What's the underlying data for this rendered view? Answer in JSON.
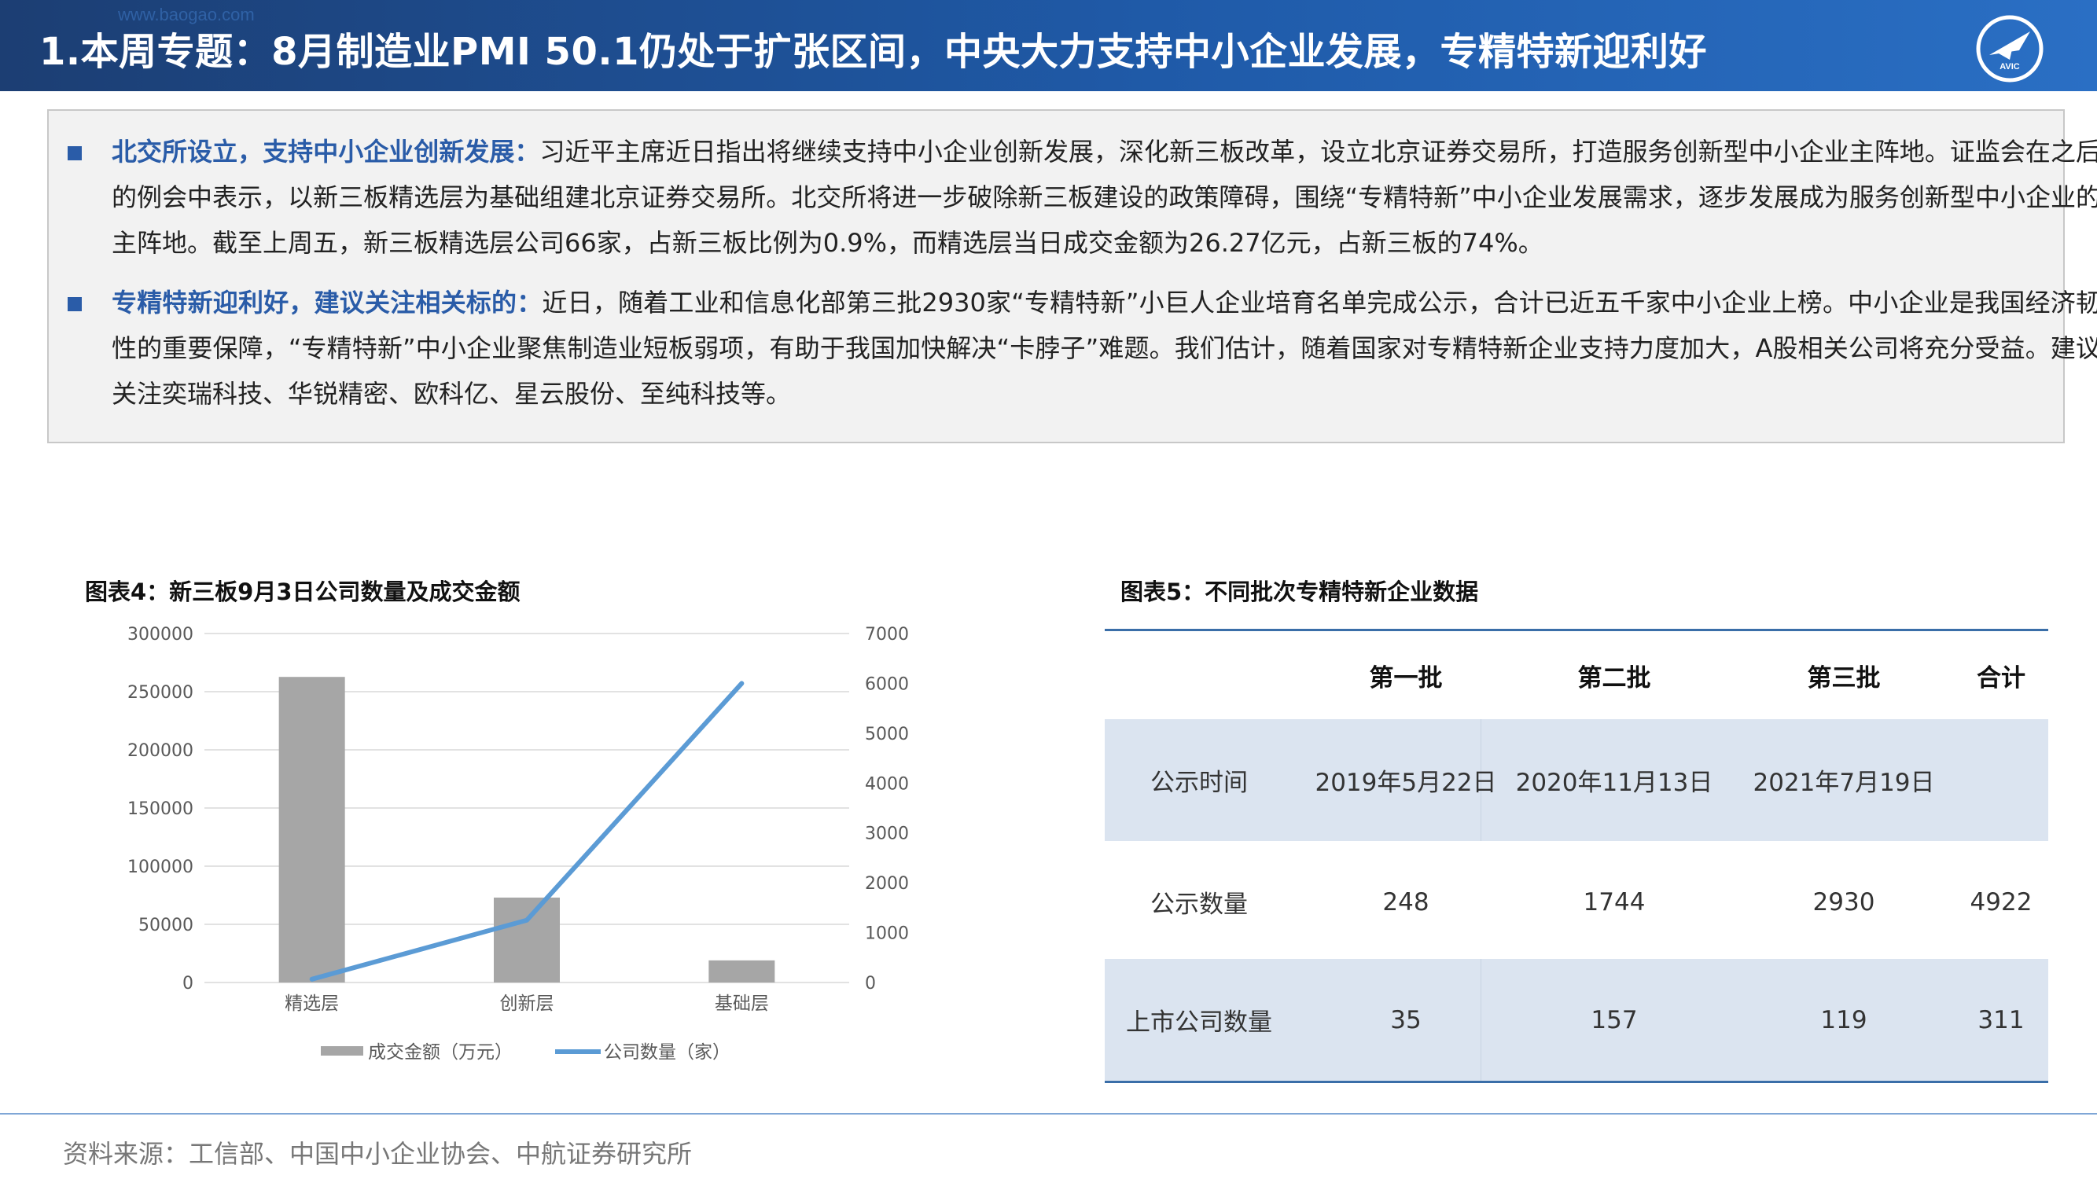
{
  "header": {
    "title": "1.本周专题：8月制造业PMI 50.1仍处于扩张区间，中央大力支持中小企业发展，专精特新迎利好",
    "watermark": "www.baogao.com",
    "logo_text": "AVIC",
    "bg_color": "#1f5aa8"
  },
  "summary": {
    "points": [
      {
        "lead": "北交所设立，支持中小企业创新发展：",
        "text": "习近平主席近日指出将继续支持中小企业创新发展，深化新三板改革，设立北京证券交易所，打造服务创新型中小企业主阵地。证监会在之后的例会中表示，以新三板精选层为基础组建北京证券交易所。北交所将进一步破除新三板建设的政策障碍，围绕“专精特新”中小企业发展需求，逐步发展成为服务创新型中小企业的主阵地。截至上周五，新三板精选层公司66家，占新三板比例为0.9%，而精选层当日成交金额为26.27亿元，占新三板的74%。"
      },
      {
        "lead": "专精特新迎利好，建议关注相关标的：",
        "text": "近日，随着工业和信息化部第三批2930家“专精特新”小巨人企业培育名单完成公示，合计已近五千家中小企业上榜。中小企业是我国经济韧性的重要保障，“专精特新”中小企业聚焦制造业短板弱项，有助于我国加快解决“卡脖子”难题。我们估计，随着国家对专精特新企业支持力度加大，A股相关公司将充分受益。建议关注奕瑞科技、华锐精密、欧科亿、星云股份、至纯科技等。"
      }
    ]
  },
  "figure4": {
    "caption": "图表4：新三板9月3日公司数量及成交金额"
  },
  "figure5": {
    "caption": "图表5：不同批次专精特新企业数据"
  },
  "chart_data": {
    "type": "bar",
    "title": "图表4：新三板9月3日公司数量及成交金额",
    "categories": [
      "精选层",
      "创新层",
      "基础层"
    ],
    "series": [
      {
        "name": "成交金额（万元）",
        "type": "bar",
        "axis": "left",
        "color": "#a6a6a6",
        "values": [
          262700,
          73000,
          19000
        ]
      },
      {
        "name": "公司数量（家）",
        "type": "line",
        "axis": "right",
        "color": "#5b9bd5",
        "values": [
          66,
          1250,
          6000
        ]
      }
    ],
    "y_left": {
      "min": 0,
      "max": 300000,
      "ticks": [
        "0",
        "50000",
        "100000",
        "150000",
        "200000",
        "250000",
        "300000"
      ]
    },
    "y_right": {
      "min": 0,
      "max": 7000,
      "ticks": [
        "0",
        "1000",
        "2000",
        "3000",
        "4000",
        "5000",
        "6000",
        "7000"
      ]
    },
    "grid": true,
    "legend_position": "bottom"
  },
  "table": {
    "headers": [
      "",
      "第一批",
      "第二批",
      "第三批",
      "合计"
    ],
    "rows": [
      [
        "公示时间",
        "2019年5月22日",
        "2020年11月13日",
        "2021年7月19日",
        ""
      ],
      [
        "公示数量",
        "248",
        "1744",
        "2930",
        "4922"
      ],
      [
        "上市公司数量",
        "35",
        "157",
        "119",
        "311"
      ]
    ]
  },
  "footer": {
    "source": "资料来源：工信部、中国中小企业协会、中航证券研究所"
  }
}
